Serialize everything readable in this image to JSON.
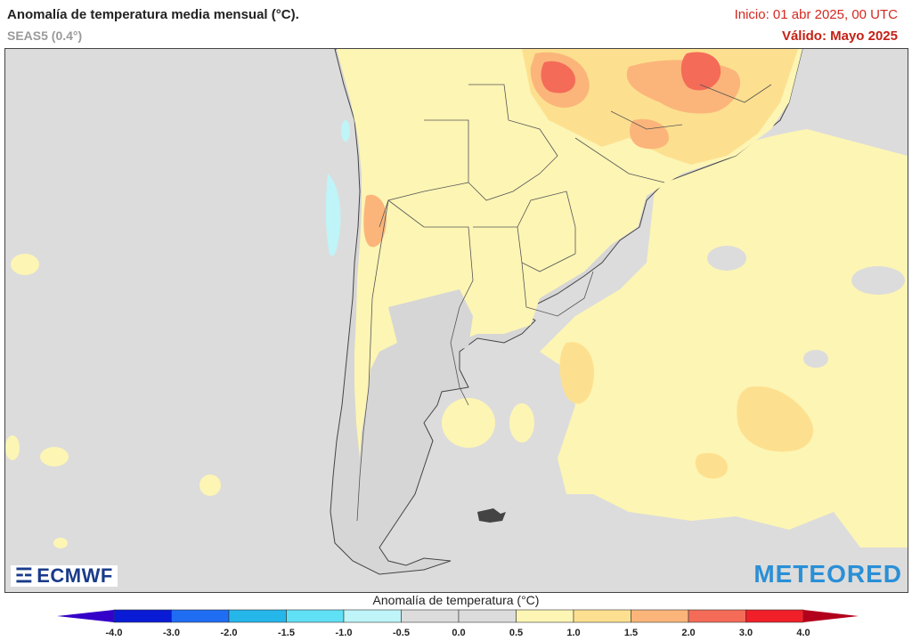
{
  "header": {
    "title": "Anomalía de temperatura media mensual (°C).",
    "subtitle": "SEAS5 (0.4°)",
    "init_label": "Inicio: 01 abr 2025, 00 UTC",
    "valid_label": "Válido: Mayo 2025"
  },
  "logos": {
    "left": "ECMWF",
    "right": "METEORED"
  },
  "legend": {
    "title": "Anomalía de temperatura (°C)",
    "ticks": [
      "-4.0",
      "-3.0",
      "-2.0",
      "-1.5",
      "-1.0",
      "-0.5",
      "0.0",
      "0.5",
      "1.0",
      "1.5",
      "2.0",
      "3.0",
      "4.0"
    ],
    "colors": [
      "#0a1bd6",
      "#1f6df2",
      "#25b6ea",
      "#5fe0f4",
      "#bff4f8",
      "#dcdcdc",
      "#dcdcdc",
      "#fdf5b4",
      "#fde08f",
      "#fbb57a",
      "#f46b58",
      "#f01f28"
    ],
    "low_extreme_color": "#3500c8",
    "high_extreme_color": "#b3001c"
  },
  "map": {
    "ocean_color": "#dcdcdc",
    "land_color": "#dcdcdc",
    "border_color": "#555555"
  }
}
